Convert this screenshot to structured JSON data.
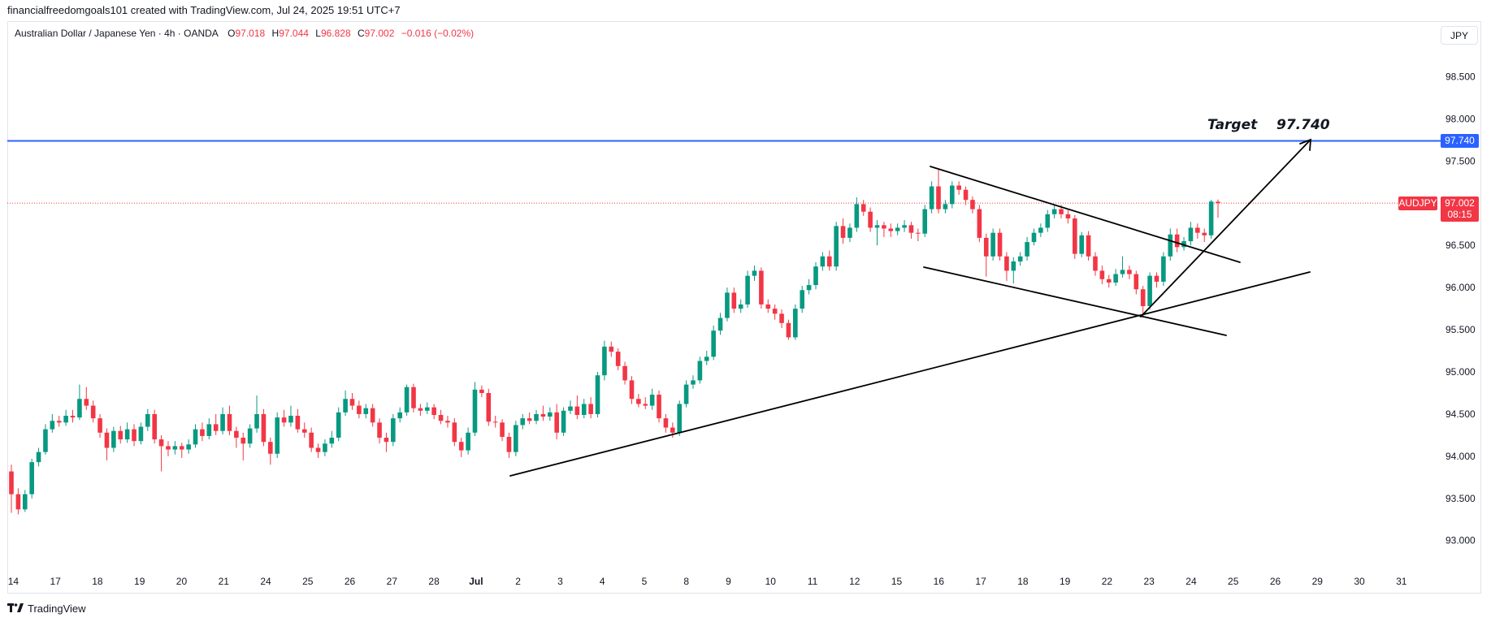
{
  "header": {
    "attribution": "financialfreedomgoals101 created with TradingView.com, Jul 24, 2025 19:51 UTC+7"
  },
  "legend": {
    "open_label": "O",
    "open": "97.018",
    "high_label": "H",
    "high": "97.044",
    "low_label": "L",
    "low": "96.828",
    "close_label": "C",
    "close": "97.002",
    "change": "−0.016 (−0.02%)"
  },
  "currency_button": "JPY",
  "price_labels": {
    "target_line": "97.740",
    "symbol_tag": "AUDJPY",
    "last_price": "97.002",
    "countdown": "08:15"
  },
  "annotation": {
    "target_word": "Target",
    "target_value": "97.740"
  },
  "footer": {
    "logo_text": "TradingView",
    "logo_icon": "tradingview-logo-icon"
  },
  "colors": {
    "up": "#089981",
    "down": "#f23645",
    "target_line": "#2962ff",
    "last_price": "#f23645",
    "drawings": "#000000"
  },
  "chart_data": {
    "type": "candlestick",
    "title": "Australian Dollar / Japanese Yen · 4h · OANDA",
    "ylim": [
      92.67,
      99.16
    ],
    "grid": false,
    "y_ticks": [
      "98.500",
      "98.000",
      "97.500",
      "96.500",
      "96.000",
      "95.500",
      "95.000",
      "94.500",
      "94.000",
      "93.500",
      "93.000"
    ],
    "x_ticks": [
      "14",
      "17",
      "18",
      "19",
      "20",
      "21",
      "24",
      "25",
      "26",
      "27",
      "28",
      "Jul",
      "2",
      "3",
      "4",
      "5",
      "8",
      "9",
      "10",
      "11",
      "12",
      "15",
      "16",
      "17",
      "18",
      "19",
      "22",
      "23",
      "24",
      "25",
      "26",
      "29",
      "30",
      "31"
    ],
    "target_price": 97.74,
    "last_price": 97.002,
    "ohlc": [
      [
        93.82,
        93.9,
        93.33,
        93.55
      ],
      [
        93.55,
        93.62,
        93.31,
        93.37
      ],
      [
        93.37,
        93.6,
        93.34,
        93.55
      ],
      [
        93.55,
        93.97,
        93.5,
        93.93
      ],
      [
        93.93,
        94.1,
        93.88,
        94.05
      ],
      [
        94.05,
        94.38,
        94.02,
        94.32
      ],
      [
        94.32,
        94.5,
        94.28,
        94.42
      ],
      [
        94.42,
        94.48,
        94.35,
        94.4
      ],
      [
        94.4,
        94.55,
        94.36,
        94.48
      ],
      [
        94.48,
        94.55,
        94.4,
        94.46
      ],
      [
        94.46,
        94.85,
        94.43,
        94.68
      ],
      [
        94.68,
        94.82,
        94.55,
        94.6
      ],
      [
        94.6,
        94.66,
        94.4,
        94.45
      ],
      [
        94.45,
        94.5,
        94.22,
        94.28
      ],
      [
        94.28,
        94.33,
        93.95,
        94.1
      ],
      [
        94.1,
        94.35,
        94.05,
        94.3
      ],
      [
        94.3,
        94.36,
        94.15,
        94.2
      ],
      [
        94.2,
        94.4,
        94.16,
        94.32
      ],
      [
        94.32,
        94.38,
        94.12,
        94.18
      ],
      [
        94.18,
        94.4,
        94.14,
        94.35
      ],
      [
        94.35,
        94.56,
        94.3,
        94.5
      ],
      [
        94.5,
        94.55,
        94.15,
        94.2
      ],
      [
        94.2,
        94.25,
        93.82,
        94.12
      ],
      [
        94.12,
        94.18,
        94.0,
        94.08
      ],
      [
        94.08,
        94.18,
        94.02,
        94.12
      ],
      [
        94.12,
        94.16,
        93.98,
        94.08
      ],
      [
        94.08,
        94.2,
        94.03,
        94.14
      ],
      [
        94.14,
        94.38,
        94.1,
        94.32
      ],
      [
        94.32,
        94.4,
        94.18,
        94.24
      ],
      [
        94.24,
        94.45,
        94.2,
        94.38
      ],
      [
        94.38,
        94.5,
        94.25,
        94.3
      ],
      [
        94.3,
        94.58,
        94.26,
        94.5
      ],
      [
        94.5,
        94.6,
        94.25,
        94.3
      ],
      [
        94.3,
        94.35,
        94.1,
        94.22
      ],
      [
        94.22,
        94.28,
        93.95,
        94.15
      ],
      [
        94.15,
        94.38,
        94.1,
        94.33
      ],
      [
        94.33,
        94.72,
        94.28,
        94.5
      ],
      [
        94.5,
        94.56,
        94.12,
        94.17
      ],
      [
        94.17,
        94.22,
        93.9,
        94.03
      ],
      [
        94.03,
        94.52,
        93.98,
        94.46
      ],
      [
        94.46,
        94.55,
        94.35,
        94.4
      ],
      [
        94.4,
        94.6,
        94.35,
        94.48
      ],
      [
        94.48,
        94.56,
        94.28,
        94.32
      ],
      [
        94.32,
        94.4,
        94.22,
        94.28
      ],
      [
        94.28,
        94.34,
        94.05,
        94.1
      ],
      [
        94.1,
        94.15,
        93.98,
        94.05
      ],
      [
        94.05,
        94.2,
        94.0,
        94.15
      ],
      [
        94.15,
        94.3,
        94.1,
        94.22
      ],
      [
        94.22,
        94.58,
        94.18,
        94.52
      ],
      [
        94.52,
        94.78,
        94.48,
        94.68
      ],
      [
        94.68,
        94.75,
        94.55,
        94.6
      ],
      [
        94.6,
        94.66,
        94.45,
        94.5
      ],
      [
        94.5,
        94.62,
        94.45,
        94.57
      ],
      [
        94.57,
        94.62,
        94.35,
        94.4
      ],
      [
        94.4,
        94.45,
        94.15,
        94.22
      ],
      [
        94.22,
        94.28,
        94.05,
        94.17
      ],
      [
        94.17,
        94.5,
        94.12,
        94.45
      ],
      [
        94.45,
        94.58,
        94.4,
        94.52
      ],
      [
        94.52,
        94.85,
        94.48,
        94.82
      ],
      [
        94.82,
        94.86,
        94.52,
        94.57
      ],
      [
        94.57,
        94.62,
        94.48,
        94.54
      ],
      [
        94.54,
        94.64,
        94.5,
        94.58
      ],
      [
        94.58,
        94.62,
        94.44,
        94.49
      ],
      [
        94.49,
        94.55,
        94.38,
        94.42
      ],
      [
        94.42,
        94.48,
        94.34,
        94.4
      ],
      [
        94.4,
        94.45,
        94.12,
        94.17
      ],
      [
        94.17,
        94.22,
        93.99,
        94.07
      ],
      [
        94.07,
        94.34,
        94.02,
        94.28
      ],
      [
        94.28,
        94.88,
        94.24,
        94.79
      ],
      [
        94.79,
        94.84,
        94.7,
        94.75
      ],
      [
        94.75,
        94.8,
        94.36,
        94.41
      ],
      [
        94.41,
        94.48,
        94.34,
        94.4
      ],
      [
        94.4,
        94.44,
        94.18,
        94.23
      ],
      [
        94.23,
        94.28,
        93.98,
        94.05
      ],
      [
        94.05,
        94.42,
        94.0,
        94.37
      ],
      [
        94.37,
        94.5,
        94.32,
        94.45
      ],
      [
        94.45,
        94.52,
        94.38,
        94.42
      ],
      [
        94.42,
        94.55,
        94.38,
        94.5
      ],
      [
        94.5,
        94.6,
        94.42,
        94.47
      ],
      [
        94.47,
        94.58,
        94.42,
        94.52
      ],
      [
        94.52,
        94.62,
        94.2,
        94.28
      ],
      [
        94.28,
        94.58,
        94.24,
        94.54
      ],
      [
        94.54,
        94.66,
        94.5,
        94.59
      ],
      [
        94.59,
        94.72,
        94.44,
        94.49
      ],
      [
        94.49,
        94.68,
        94.45,
        94.62
      ],
      [
        94.62,
        94.7,
        94.45,
        94.5
      ],
      [
        94.5,
        95.0,
        94.46,
        94.96
      ],
      [
        94.96,
        95.37,
        94.9,
        95.3
      ],
      [
        95.3,
        95.36,
        95.18,
        95.24
      ],
      [
        95.24,
        95.28,
        95.02,
        95.07
      ],
      [
        95.07,
        95.12,
        94.85,
        94.9
      ],
      [
        94.9,
        94.95,
        94.62,
        94.68
      ],
      [
        94.68,
        94.74,
        94.58,
        94.62
      ],
      [
        94.62,
        94.7,
        94.56,
        94.6
      ],
      [
        94.6,
        94.8,
        94.55,
        94.73
      ],
      [
        94.73,
        94.78,
        94.4,
        94.45
      ],
      [
        94.45,
        94.5,
        94.28,
        94.34
      ],
      [
        94.34,
        94.4,
        94.22,
        94.28
      ],
      [
        94.28,
        94.66,
        94.24,
        94.62
      ],
      [
        94.62,
        94.9,
        94.58,
        94.85
      ],
      [
        94.85,
        94.96,
        94.8,
        94.9
      ],
      [
        94.9,
        95.18,
        94.86,
        95.13
      ],
      [
        95.13,
        95.25,
        95.08,
        95.18
      ],
      [
        95.18,
        95.55,
        95.14,
        95.49
      ],
      [
        95.49,
        95.7,
        95.44,
        95.64
      ],
      [
        95.64,
        96.0,
        95.6,
        95.94
      ],
      [
        95.94,
        96.0,
        95.7,
        95.75
      ],
      [
        95.75,
        95.86,
        95.7,
        95.8
      ],
      [
        95.8,
        96.2,
        95.76,
        96.14
      ],
      [
        96.14,
        96.26,
        96.08,
        96.2
      ],
      [
        96.2,
        96.24,
        95.75,
        95.8
      ],
      [
        95.8,
        95.86,
        95.7,
        95.75
      ],
      [
        95.75,
        95.8,
        95.62,
        95.69
      ],
      [
        95.69,
        95.74,
        95.52,
        95.58
      ],
      [
        95.58,
        95.62,
        95.38,
        95.41
      ],
      [
        95.41,
        95.8,
        95.38,
        95.75
      ],
      [
        95.75,
        96.02,
        95.7,
        95.97
      ],
      [
        95.97,
        96.1,
        95.92,
        96.03
      ],
      [
        96.03,
        96.3,
        95.98,
        96.25
      ],
      [
        96.25,
        96.42,
        96.2,
        96.37
      ],
      [
        96.37,
        96.44,
        96.2,
        96.25
      ],
      [
        96.25,
        96.78,
        96.2,
        96.73
      ],
      [
        96.73,
        96.82,
        96.52,
        96.59
      ],
      [
        96.59,
        96.76,
        96.54,
        96.71
      ],
      [
        96.71,
        97.07,
        96.66,
        96.99
      ],
      [
        96.99,
        97.04,
        96.85,
        96.9
      ],
      [
        96.9,
        96.95,
        96.66,
        96.71
      ],
      [
        96.71,
        96.8,
        96.5,
        96.74
      ],
      [
        96.74,
        96.78,
        96.6,
        96.7
      ],
      [
        96.7,
        96.76,
        96.6,
        96.67
      ],
      [
        96.67,
        96.76,
        96.62,
        96.71
      ],
      [
        96.71,
        96.8,
        96.66,
        96.74
      ],
      [
        96.74,
        96.78,
        96.58,
        96.65
      ],
      [
        96.65,
        96.7,
        96.55,
        96.64
      ],
      [
        96.64,
        96.98,
        96.6,
        96.93
      ],
      [
        96.93,
        97.26,
        96.88,
        97.2
      ],
      [
        97.2,
        97.41,
        96.88,
        96.93
      ],
      [
        96.93,
        97.04,
        96.88,
        96.99
      ],
      [
        96.99,
        97.26,
        96.94,
        97.21
      ],
      [
        97.21,
        97.26,
        97.1,
        97.16
      ],
      [
        97.16,
        97.2,
        96.98,
        97.04
      ],
      [
        97.04,
        97.08,
        96.88,
        96.93
      ],
      [
        96.93,
        96.98,
        96.54,
        96.59
      ],
      [
        96.59,
        96.64,
        96.13,
        96.37
      ],
      [
        96.37,
        96.7,
        96.32,
        96.65
      ],
      [
        96.65,
        96.7,
        96.32,
        96.37
      ],
      [
        96.37,
        96.42,
        96.08,
        96.2
      ],
      [
        96.2,
        96.36,
        96.05,
        96.31
      ],
      [
        96.31,
        96.42,
        96.26,
        96.37
      ],
      [
        96.37,
        96.6,
        96.32,
        96.54
      ],
      [
        96.54,
        96.7,
        96.5,
        96.65
      ],
      [
        96.65,
        96.76,
        96.6,
        96.71
      ],
      [
        96.71,
        96.92,
        96.66,
        96.87
      ],
      [
        96.87,
        96.98,
        96.82,
        96.93
      ],
      [
        96.93,
        96.98,
        96.82,
        96.87
      ],
      [
        96.87,
        96.92,
        96.76,
        96.82
      ],
      [
        96.82,
        96.86,
        96.34,
        96.4
      ],
      [
        96.4,
        96.66,
        96.36,
        96.62
      ],
      [
        96.62,
        96.67,
        96.32,
        96.37
      ],
      [
        96.37,
        96.42,
        96.14,
        96.2
      ],
      [
        96.2,
        96.26,
        96.04,
        96.1
      ],
      [
        96.1,
        96.15,
        96.0,
        96.06
      ],
      [
        96.06,
        96.22,
        96.02,
        96.16
      ],
      [
        96.16,
        96.37,
        96.12,
        96.21
      ],
      [
        96.21,
        96.26,
        96.1,
        96.16
      ],
      [
        96.16,
        96.2,
        95.92,
        95.98
      ],
      [
        95.98,
        96.02,
        95.65,
        95.78
      ],
      [
        95.78,
        96.18,
        95.74,
        96.14
      ],
      [
        96.14,
        96.18,
        96.0,
        96.07
      ],
      [
        96.07,
        96.42,
        96.02,
        96.37
      ],
      [
        96.37,
        96.7,
        96.32,
        96.63
      ],
      [
        96.63,
        96.7,
        96.42,
        96.48
      ],
      [
        96.48,
        96.6,
        96.44,
        96.55
      ],
      [
        96.55,
        96.78,
        96.5,
        96.71
      ],
      [
        96.71,
        96.76,
        96.58,
        96.65
      ],
      [
        96.65,
        96.7,
        96.54,
        96.62
      ],
      [
        96.62,
        97.04,
        96.58,
        97.02
      ],
      [
        97.018,
        97.044,
        96.828,
        97.002
      ]
    ]
  }
}
